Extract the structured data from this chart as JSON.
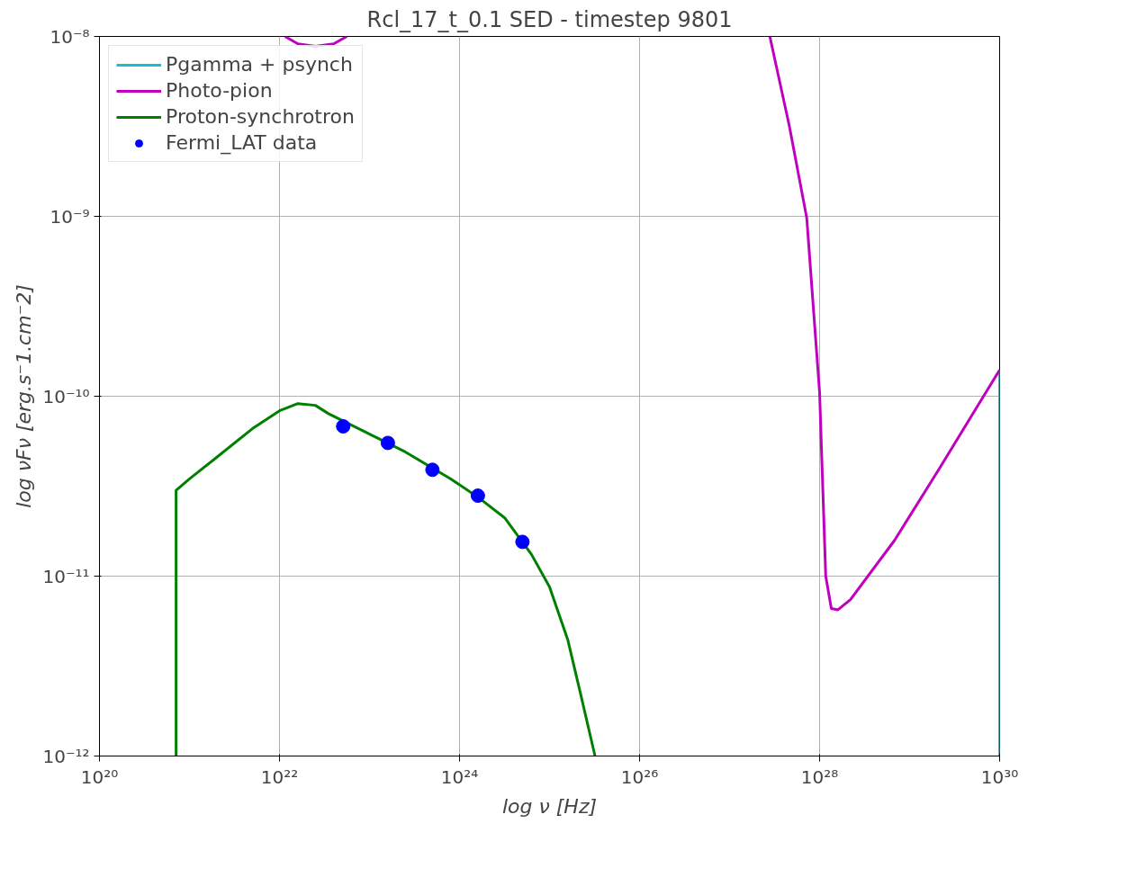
{
  "chart_data": {
    "type": "line",
    "title": "Rcl_17_t_0.1 SED - timestep 9801",
    "xlabel": "log ν [Hz]",
    "ylabel": "log νFν [erg.s⁻1.cm⁻2]",
    "log": "xy",
    "grid": true,
    "legend": "top left",
    "xlim": [
      1e+20,
      1e+30
    ],
    "ylim": [
      1e-12,
      1e-08
    ],
    "xticks": [
      {
        "value": 1e+20,
        "label": "10²⁰"
      },
      {
        "value": 1e+22,
        "label": "10²²"
      },
      {
        "value": 1e+24,
        "label": "10²⁴"
      },
      {
        "value": 1e+26,
        "label": "10²⁶"
      },
      {
        "value": 1e+28,
        "label": "10²⁸"
      },
      {
        "value": 1e+30,
        "label": "10³⁰"
      }
    ],
    "yticks": [
      {
        "value": 1e-12,
        "label": "10⁻¹²"
      },
      {
        "value": 1e-11,
        "label": "10⁻¹¹"
      },
      {
        "value": 1e-10,
        "label": "10⁻¹⁰"
      },
      {
        "value": 1e-09,
        "label": "10⁻⁹"
      },
      {
        "value": 1e-08,
        "label": "10⁻⁸"
      }
    ],
    "series": [
      {
        "name": "Pgamma + psynch",
        "color": "#17becf",
        "x": [
          1e+30,
          1e+30
        ],
        "values": [
          1e-12,
          1.4e-10
        ]
      },
      {
        "name": "Photo-pion",
        "color": "#bf00bf",
        "x": [
          1.15e+22,
          1.6e+22,
          2.5e+22,
          4e+22,
          5.6e+22,
          1e+25,
          2.8e+27,
          4.6e+27,
          7.2e+27,
          1e+28,
          1.17e+28,
          1.35e+28,
          1.6e+28,
          2.2e+28,
          6.8e+28,
          2.1e+29,
          1e+30
        ],
        "values": [
          1e-08,
          9.1e-09,
          8.8e-09,
          9.1e-09,
          1e-08,
          null,
          1e-08,
          3.2e-09,
          9.8e-10,
          1.05e-10,
          1e-11,
          6.6e-12,
          6.5e-12,
          7.4e-12,
          1.58e-11,
          3.9e-11,
          1.4e-10
        ]
      },
      {
        "name": "Proton-synchrotron",
        "color": "#008000",
        "x": [
          7.1e+20,
          7.1e+20,
          1e+21,
          2e+21,
          5e+21,
          1e+22,
          1.6e+22,
          2.5e+22,
          3.5e+22,
          2.5e+23,
          8e+23,
          1.6e+24,
          3.2e+24,
          6.3e+24,
          1e+25,
          1.6e+25,
          2.2e+25,
          3.2e+25
        ],
        "values": [
          1e-12,
          3e-11,
          3.47e-11,
          4.57e-11,
          6.6e-11,
          8.3e-11,
          9.1e-11,
          8.9e-11,
          8e-11,
          4.9e-11,
          3.47e-11,
          2.75e-11,
          2.1e-11,
          1.32e-11,
          8.7e-12,
          4.4e-12,
          2.24e-12,
          1e-12
        ]
      },
      {
        "name": "Fermi_LAT data",
        "type": "scatter",
        "marker": "circle",
        "color": "#0000ff",
        "x": [
          5.1e+22,
          1.6e+23,
          5e+23,
          1.6e+24,
          5e+24
        ],
        "values": [
          6.8e-11,
          5.5e-11,
          3.9e-11,
          2.8e-11,
          1.55e-11
        ]
      }
    ]
  }
}
